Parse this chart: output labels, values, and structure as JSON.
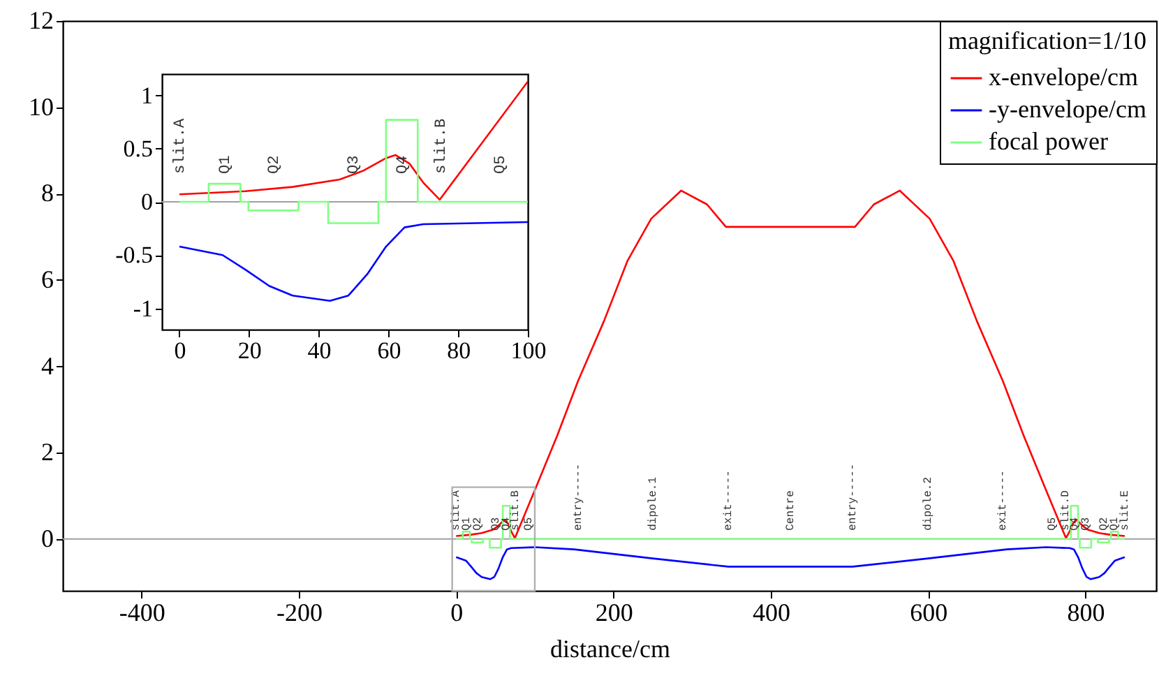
{
  "chart_data": [
    {
      "type": "line",
      "xlabel": "distance/cm",
      "legend_title": "magnification=1/10",
      "legend": "top right",
      "xlim": [
        -500,
        890
      ],
      "ylim": [
        -1.2,
        12
      ],
      "xticks": [
        -400,
        -200,
        0,
        200,
        400,
        600,
        800
      ],
      "yticks": [
        0,
        2,
        4,
        6,
        8,
        10,
        12
      ],
      "series": [
        {
          "name": "x-envelope/cm",
          "color": "#ff0000",
          "x": [
            0,
            19,
            32.5,
            46,
            52.6,
            59.3,
            62,
            66,
            70,
            74.7,
            100,
            128.6,
            155,
            188,
            218,
            248,
            286,
            319,
            343,
            507,
            531,
            564,
            602,
            632,
            662,
            695,
            721.4,
            750,
            775.3,
            780,
            784,
            788,
            790.7,
            797.4,
            804,
            817.5,
            831,
            850
          ],
          "values": [
            0.07,
            0.1,
            0.14,
            0.21,
            0.29,
            0.41,
            0.44,
            0.36,
            0.18,
            0.02,
            1.13,
            2.4,
            3.66,
            5.05,
            6.45,
            7.42,
            8.07,
            7.75,
            7.23,
            7.23,
            7.75,
            8.07,
            7.42,
            6.45,
            5.05,
            3.66,
            2.4,
            1.13,
            0.02,
            0.18,
            0.36,
            0.44,
            0.41,
            0.29,
            0.21,
            0.14,
            0.1,
            0.07
          ]
        },
        {
          "name": "-y-envelope/cm",
          "color": "#0000ff",
          "x": [
            0,
            12.4,
            19.1,
            25.8,
            32.5,
            43.2,
            48.5,
            53.9,
            59.3,
            64.6,
            70,
            100,
            150,
            250,
            346,
            504,
            600,
            700,
            750,
            780,
            785.4,
            790.7,
            796.1,
            801.5,
            806.8,
            817.5,
            824.2,
            830.9,
            837.6,
            850
          ],
          "values": [
            -0.42,
            -0.5,
            -0.64,
            -0.79,
            -0.88,
            -0.93,
            -0.88,
            -0.68,
            -0.42,
            -0.24,
            -0.21,
            -0.19,
            -0.24,
            -0.45,
            -0.64,
            -0.64,
            -0.45,
            -0.24,
            -0.19,
            -0.21,
            -0.24,
            -0.42,
            -0.68,
            -0.88,
            -0.93,
            -0.88,
            -0.79,
            -0.64,
            -0.5,
            -0.42
          ]
        },
        {
          "name": "focal power",
          "color": "#80ff80",
          "x": [
            0,
            8.4,
            8.4,
            17.5,
            17.5,
            19.8,
            19.8,
            34.2,
            34.2,
            42.7,
            42.7,
            57.1,
            57.1,
            59.3,
            59.3,
            68.4,
            68.4,
            781.6,
            781.6,
            790.7,
            790.7,
            792.9,
            792.9,
            807.3,
            807.3,
            815.8,
            815.8,
            830.2,
            830.2,
            832.5,
            832.5,
            841.6,
            841.6,
            850
          ],
          "values": [
            0,
            0,
            0.17,
            0.17,
            0,
            0,
            -0.08,
            -0.08,
            0,
            0,
            -0.2,
            -0.2,
            0,
            0,
            0.77,
            0.77,
            0,
            0,
            0.77,
            0.77,
            0,
            0,
            -0.2,
            -0.2,
            0,
            0,
            -0.08,
            -0.08,
            0,
            0,
            0.17,
            0.17,
            0,
            0
          ]
        }
      ],
      "ref_lines": [
        {
          "axis": "y",
          "value": 0,
          "color": "#a0a0a0"
        }
      ],
      "annotations": [
        {
          "text": "slit.A",
          "x": 0,
          "y": 0
        },
        {
          "text": "Q1",
          "x": 13,
          "y": 0
        },
        {
          "text": "Q2",
          "x": 27,
          "y": 0
        },
        {
          "text": "Q3",
          "x": 50,
          "y": 0
        },
        {
          "text": "Q4",
          "x": 64,
          "y": 0
        },
        {
          "text": "slit.B",
          "x": 75,
          "y": 0
        },
        {
          "text": "Q5",
          "x": 92,
          "y": 0
        },
        {
          "text": "entry-----",
          "x": 155,
          "y": 0
        },
        {
          "text": "dipole.1",
          "x": 250,
          "y": 0
        },
        {
          "text": "exit-----",
          "x": 346,
          "y": 0
        },
        {
          "text": "Centre",
          "x": 425,
          "y": 0
        },
        {
          "text": "entry-----",
          "x": 504,
          "y": 0
        },
        {
          "text": "dipole.2",
          "x": 600,
          "y": 0
        },
        {
          "text": "exit-----",
          "x": 695,
          "y": 0
        },
        {
          "text": "Q5",
          "x": 758,
          "y": 0
        },
        {
          "text": "slit.D",
          "x": 775,
          "y": 0
        },
        {
          "text": "Q4",
          "x": 786,
          "y": 0
        },
        {
          "text": "Q3",
          "x": 800,
          "y": 0
        },
        {
          "text": "Q2",
          "x": 823,
          "y": 0
        },
        {
          "text": "Q1",
          "x": 837,
          "y": 0
        },
        {
          "text": "slit.E",
          "x": 850,
          "y": 0
        }
      ]
    },
    {
      "type": "line",
      "xlim": [
        -5,
        100
      ],
      "ylim": [
        -1.2,
        1.2
      ],
      "xticks": [
        0,
        20,
        40,
        60,
        80,
        100
      ],
      "yticks": [
        -1,
        -0.5,
        0,
        0.5,
        1
      ],
      "series": [
        {
          "color": "#ff0000",
          "x": [
            0,
            19,
            32.5,
            46,
            52.6,
            59.3,
            62,
            66,
            70,
            74.7,
            100
          ],
          "values": [
            0.07,
            0.1,
            0.14,
            0.21,
            0.29,
            0.41,
            0.44,
            0.36,
            0.18,
            0.02,
            1.13
          ]
        },
        {
          "color": "#0000ff",
          "x": [
            0,
            12.4,
            19.1,
            25.8,
            32.5,
            43.2,
            48.5,
            53.9,
            59.3,
            64.6,
            70,
            100
          ],
          "values": [
            -0.42,
            -0.5,
            -0.64,
            -0.79,
            -0.88,
            -0.93,
            -0.88,
            -0.68,
            -0.42,
            -0.24,
            -0.21,
            -0.19
          ]
        },
        {
          "color": "#80ff80",
          "x": [
            0,
            8.4,
            8.4,
            17.5,
            17.5,
            19.8,
            19.8,
            34.2,
            34.2,
            42.7,
            42.7,
            57.1,
            57.1,
            59.3,
            59.3,
            68.4,
            68.4,
            100
          ],
          "values": [
            0,
            0,
            0.17,
            0.17,
            0,
            0,
            -0.08,
            -0.08,
            0,
            0,
            -0.2,
            -0.2,
            0,
            0,
            0.77,
            0.77,
            0,
            0
          ]
        }
      ],
      "ref_lines": [
        {
          "axis": "y",
          "value": 0,
          "color": "#a0a0a0"
        }
      ],
      "annotations": [
        {
          "text": "slit.A",
          "x": 0,
          "y": 0
        },
        {
          "text": "Q1",
          "x": 13,
          "y": 0
        },
        {
          "text": "Q2",
          "x": 27,
          "y": 0
        },
        {
          "text": "Q3",
          "x": 50,
          "y": 0
        },
        {
          "text": "Q4",
          "x": 64,
          "y": 0
        },
        {
          "text": "slit.B",
          "x": 75,
          "y": 0
        },
        {
          "text": "Q5",
          "x": 92,
          "y": 0
        }
      ]
    }
  ]
}
